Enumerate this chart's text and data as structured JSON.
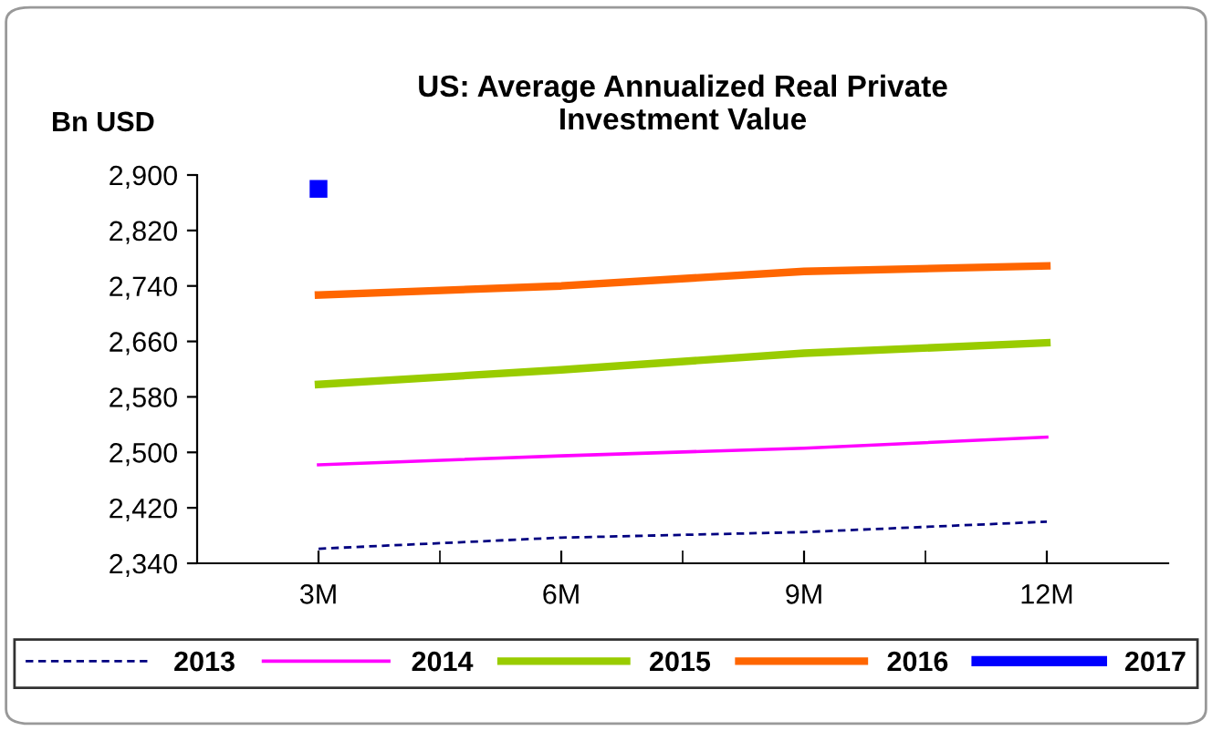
{
  "chart_data": {
    "type": "line",
    "title": "US: Average Annualized Real Private\nInvestment Value",
    "ylabel": "Bn USD",
    "categories": [
      "3M",
      "6M",
      "9M",
      "12M"
    ],
    "ylim": [
      2340,
      2900
    ],
    "yticks": [
      {
        "value": 2340,
        "label": "2,340"
      },
      {
        "value": 2420,
        "label": "2,420"
      },
      {
        "value": 2500,
        "label": "2,500"
      },
      {
        "value": 2580,
        "label": "2,580"
      },
      {
        "value": 2660,
        "label": "2,660"
      },
      {
        "value": 2740,
        "label": "2,740"
      },
      {
        "value": 2820,
        "label": "2,820"
      },
      {
        "value": 2900,
        "label": "2,900"
      }
    ],
    "grid": false,
    "legend": "bottom",
    "marker": "none",
    "series": [
      {
        "name": "2013",
        "color": "#000080",
        "line_style": "dashed",
        "values": [
          2361,
          2377,
          2385,
          2400
        ]
      },
      {
        "name": "2014",
        "color": "#ff00ff",
        "values": [
          2482,
          2495,
          2506,
          2522
        ]
      },
      {
        "name": "2015",
        "color": "#99cc00",
        "values": [
          2598,
          2619,
          2643,
          2658
        ]
      },
      {
        "name": "2016",
        "color": "#ff6600",
        "values": [
          2727,
          2740,
          2761,
          2769
        ]
      },
      {
        "name": "2017",
        "color": "#0000ff",
        "marker": "square",
        "values": [
          2880,
          null,
          null,
          null
        ]
      }
    ]
  }
}
